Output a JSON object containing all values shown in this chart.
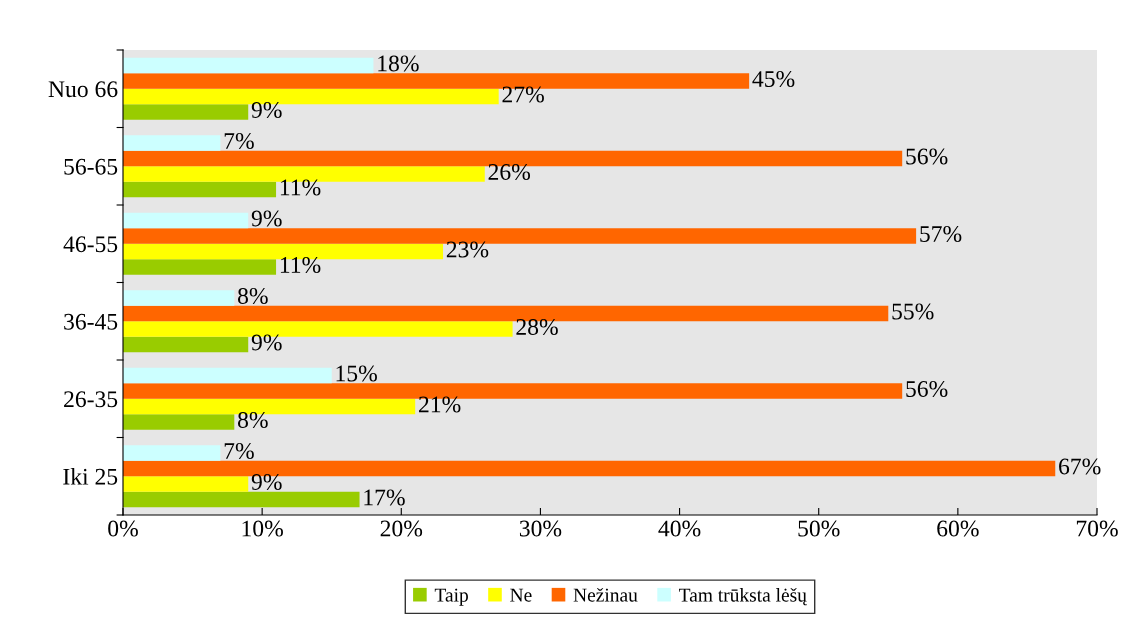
{
  "chart_data": {
    "type": "bar",
    "orientation": "horizontal",
    "categories": [
      "Nuo 66",
      "56-65",
      "46-55",
      "36-45",
      "26-35",
      "Iki 25"
    ],
    "series": [
      {
        "name": "Taip",
        "color": "#99cc00",
        "values": [
          9,
          11,
          11,
          9,
          8,
          17
        ],
        "value_labels": [
          "9%",
          "11%",
          "11%",
          "9%",
          "8%",
          "17%"
        ]
      },
      {
        "name": "Ne",
        "color": "#ffff00",
        "values": [
          27,
          26,
          23,
          28,
          21,
          9
        ],
        "value_labels": [
          "27%",
          "26%",
          "23%",
          "28%",
          "21%",
          "9%"
        ]
      },
      {
        "name": "Nežinau",
        "color": "#ff6600",
        "values": [
          45,
          56,
          57,
          55,
          56,
          67
        ],
        "value_labels": [
          "45%",
          "56%",
          "57%",
          "55%",
          "56%",
          "67%"
        ]
      },
      {
        "name": "Tam trūksta lėšų",
        "color": "#ccffff",
        "values": [
          18,
          7,
          9,
          8,
          15,
          7
        ],
        "value_labels": [
          "18%",
          "7%",
          "9%",
          "8%",
          "15%",
          "7%"
        ]
      }
    ],
    "xlim": [
      0,
      70
    ],
    "xticks": [
      {
        "value": 0,
        "label": "0%"
      },
      {
        "value": 10,
        "label": "10%"
      },
      {
        "value": 20,
        "label": "20%"
      },
      {
        "value": 30,
        "label": "30%"
      },
      {
        "value": 40,
        "label": "40%"
      },
      {
        "value": 50,
        "label": "50%"
      },
      {
        "value": 60,
        "label": "60%"
      },
      {
        "value": 70,
        "label": "70%"
      }
    ],
    "grid": false,
    "legend": "bottom"
  }
}
